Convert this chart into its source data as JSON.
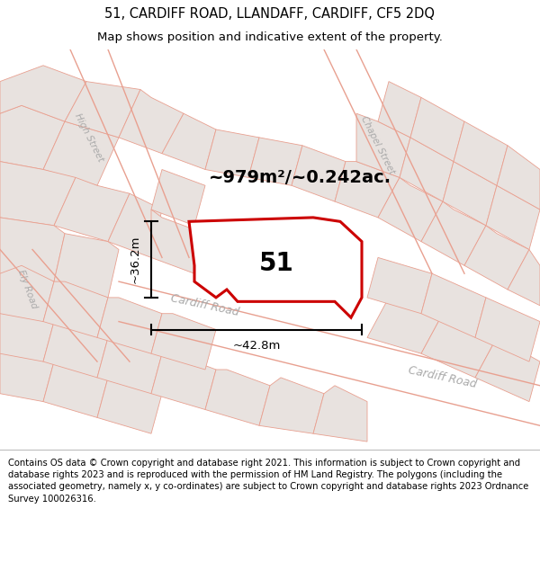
{
  "title_line1": "51, CARDIFF ROAD, LLANDAFF, CARDIFF, CF5 2DQ",
  "title_line2": "Map shows position and indicative extent of the property.",
  "title_fontsize": 10.5,
  "subtitle_fontsize": 9.5,
  "footer_text": "Contains OS data © Crown copyright and database right 2021. This information is subject to Crown copyright and database rights 2023 and is reproduced with the permission of HM Land Registry. The polygons (including the associated geometry, namely x, y co-ordinates) are subject to Crown copyright and database rights 2023 Ordnance Survey 100026316.",
  "footer_fontsize": 7.2,
  "map_bg": "#f0ece8",
  "property_fill": "white",
  "property_edge": "#cc0000",
  "property_label": "51",
  "area_label": "~979m²/~0.242ac.",
  "width_label": "~42.8m",
  "height_label": "~36.2m",
  "road_color": "#e8a090",
  "block_light": "#e8e2df",
  "block_road": "#f0ece8",
  "figsize": [
    6.0,
    6.25
  ],
  "dpi": 100
}
